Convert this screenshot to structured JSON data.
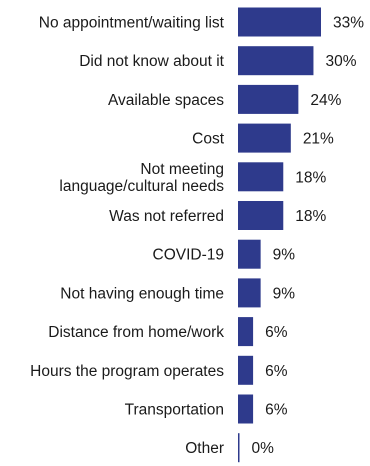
{
  "chart_data": {
    "type": "bar",
    "orientation": "horizontal",
    "categories": [
      [
        "No appointment/waiting list"
      ],
      [
        "Did not know about it"
      ],
      [
        "Available spaces"
      ],
      [
        "Cost"
      ],
      [
        "Not meeting",
        "language/cultural needs"
      ],
      [
        "Was not referred"
      ],
      [
        "COVID-19"
      ],
      [
        "Not having enough time"
      ],
      [
        "Distance from home/work"
      ],
      [
        "Hours the program operates"
      ],
      [
        "Transportation"
      ],
      [
        "Other"
      ]
    ],
    "values": [
      33,
      30,
      24,
      21,
      18,
      18,
      9,
      9,
      6,
      6,
      6,
      0
    ],
    "value_labels": [
      "33%",
      "30%",
      "24%",
      "21%",
      "18%",
      "18%",
      "9%",
      "9%",
      "6%",
      "6%",
      "6%",
      "0%"
    ],
    "unit": "%",
    "xlim": [
      0,
      33
    ],
    "bar_color": "#2e3a8c",
    "grid": false,
    "legend": "none"
  }
}
